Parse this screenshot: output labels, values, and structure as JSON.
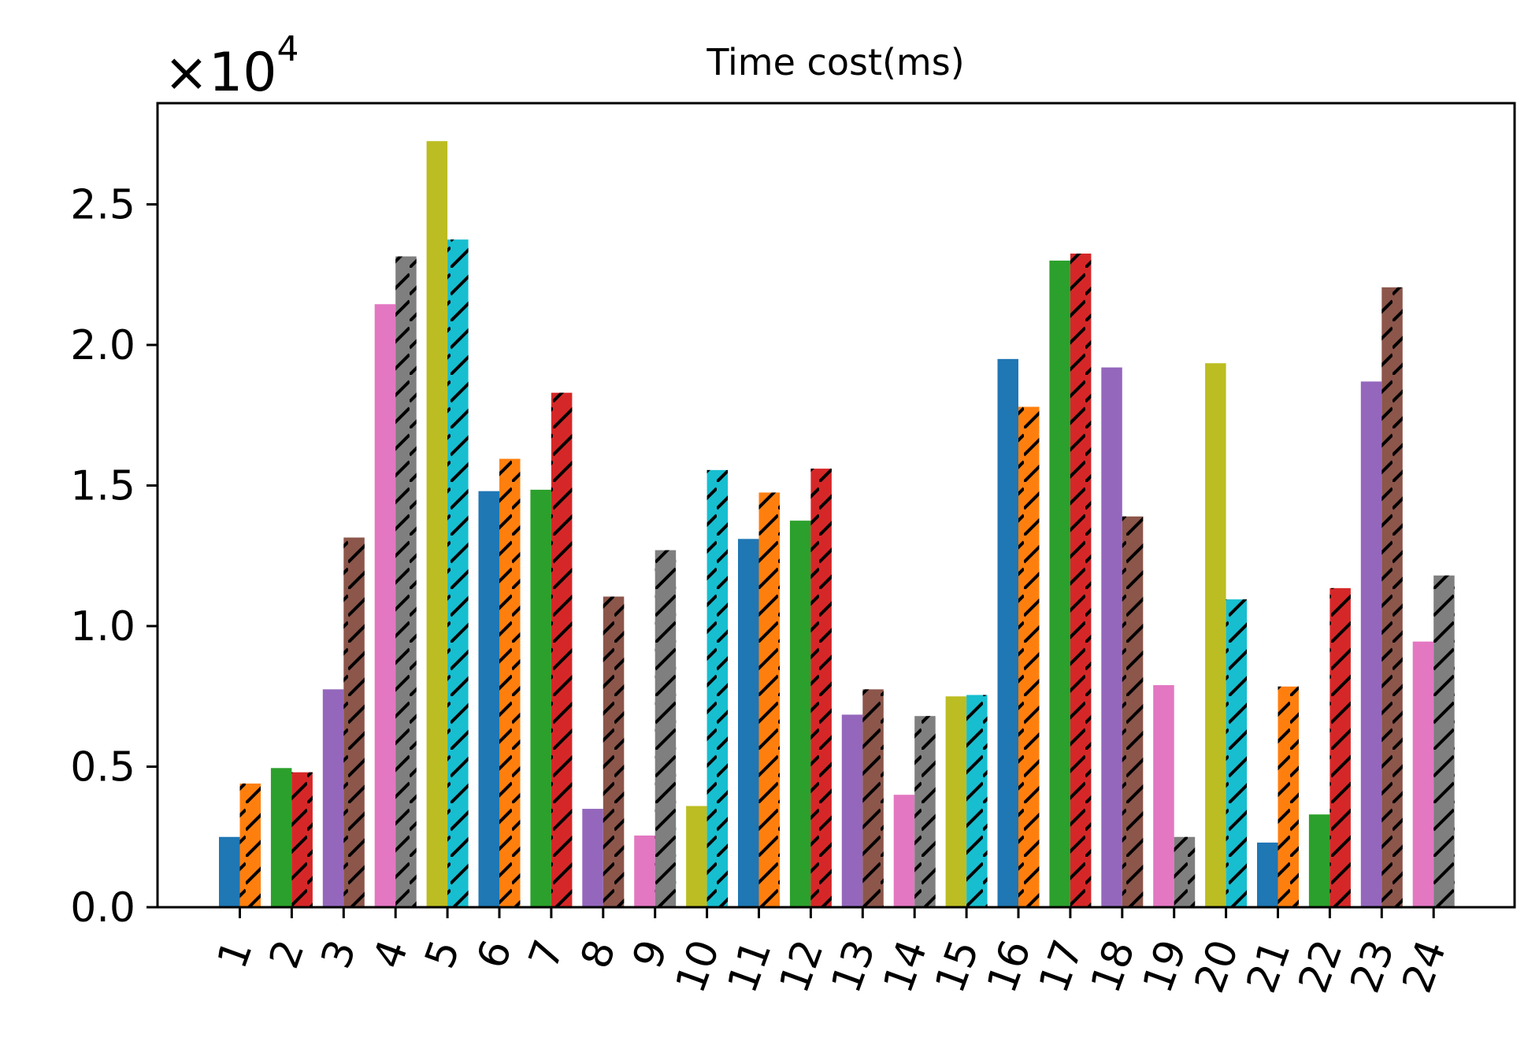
{
  "chart_data": {
    "type": "bar",
    "title": "Time cost(ms)",
    "scale_multiplier": "×10",
    "scale_exponent": "4",
    "xlabel": "",
    "ylabel": "",
    "ylim": [
      0,
      28600
    ],
    "yticks": [
      0,
      5000,
      10000,
      15000,
      20000,
      25000
    ],
    "ytick_labels": [
      "0.0",
      "0.5",
      "1.0",
      "1.5",
      "2.0",
      "2.5"
    ],
    "categories": [
      "1",
      "2",
      "3",
      "4",
      "5",
      "6",
      "7",
      "8",
      "9",
      "10",
      "11",
      "12",
      "13",
      "14",
      "15",
      "16",
      "17",
      "18",
      "19",
      "20",
      "21",
      "22",
      "23",
      "24"
    ],
    "series": [
      {
        "name": "solid",
        "hatched": false,
        "values": [
          2500,
          4950,
          7750,
          21450,
          27250,
          14800,
          14850,
          3500,
          2550,
          3600,
          13100,
          13750,
          6850,
          4000,
          7500,
          19500,
          23000,
          19200,
          7900,
          19350,
          2300,
          3300,
          18700,
          9450
        ]
      },
      {
        "name": "hatched",
        "hatched": true,
        "values": [
          4400,
          4800,
          13150,
          23150,
          23750,
          15950,
          18300,
          11050,
          12700,
          15550,
          14750,
          15600,
          7750,
          6800,
          7550,
          17800,
          23250,
          13900,
          2500,
          10950,
          7850,
          11350,
          22050,
          11800
        ]
      }
    ],
    "solid_colors": [
      "#1f77b4",
      "#2ca02c",
      "#9467bd",
      "#e377c2",
      "#bcbd22",
      "#1f77b4",
      "#2ca02c",
      "#9467bd",
      "#e377c2",
      "#bcbd22",
      "#1f77b4",
      "#2ca02c",
      "#9467bd",
      "#e377c2",
      "#bcbd22",
      "#1f77b4",
      "#2ca02c",
      "#9467bd",
      "#e377c2",
      "#bcbd22",
      "#1f77b4",
      "#2ca02c",
      "#9467bd",
      "#e377c2"
    ],
    "hatched_colors": [
      "#ff7f0e",
      "#d62728",
      "#8c564b",
      "#7f7f7f",
      "#17becf",
      "#ff7f0e",
      "#d62728",
      "#8c564b",
      "#7f7f7f",
      "#17becf",
      "#ff7f0e",
      "#d62728",
      "#8c564b",
      "#7f7f7f",
      "#17becf",
      "#ff7f0e",
      "#d62728",
      "#8c564b",
      "#7f7f7f",
      "#17becf",
      "#ff7f0e",
      "#d62728",
      "#8c564b",
      "#7f7f7f"
    ],
    "grid": false,
    "legend": "none"
  }
}
